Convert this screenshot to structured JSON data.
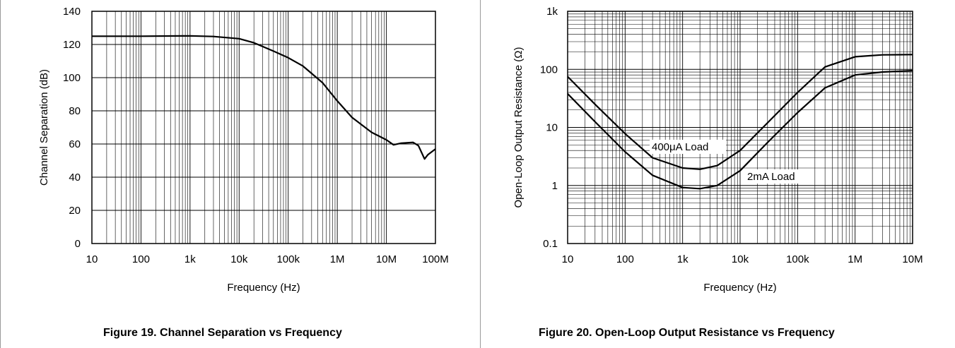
{
  "chart_data": [
    {
      "type": "line",
      "caption": "Figure 19. Channel Separation vs Frequency",
      "xlabel": "Frequency (Hz)",
      "ylabel": "Channel Separation (dB)",
      "xscale": "log",
      "xlim": [
        10,
        100000000
      ],
      "ylim": [
        0,
        140
      ],
      "x_tick_labels": [
        "10",
        "100",
        "1k",
        "10k",
        "100k",
        "1M",
        "10M",
        "100M"
      ],
      "y_tick_labels": [
        "0",
        "20",
        "40",
        "60",
        "80",
        "100",
        "120",
        "140"
      ],
      "grid": true,
      "series": [
        {
          "x": [
            10,
            100,
            1000,
            3000,
            10000,
            20000,
            50000,
            100000,
            200000,
            500000,
            1000000,
            2000000,
            5000000,
            10000000,
            14000000,
            20000000,
            35000000,
            45000000,
            60000000,
            70000000,
            100000000
          ],
          "values": [
            125,
            125,
            125.2,
            124.8,
            123.5,
            121,
            116,
            112,
            107,
            97,
            86,
            76,
            67,
            62.5,
            59.5,
            60.5,
            61,
            59,
            51,
            53.5,
            57
          ]
        }
      ]
    },
    {
      "type": "line",
      "caption": "Figure 20. Open-Loop Output Resistance vs Frequency",
      "xlabel": "Frequency (Hz)",
      "ylabel": "Open-Loop Output Resistance (Ω)",
      "xscale": "log",
      "yscale": "log",
      "xlim": [
        10,
        10000000
      ],
      "ylim": [
        0.1,
        1000
      ],
      "x_tick_labels": [
        "10",
        "100",
        "1k",
        "10k",
        "100k",
        "1M",
        "10M"
      ],
      "y_tick_labels": [
        "0.1",
        "1",
        "10",
        "100",
        "1k"
      ],
      "grid": true,
      "annotations": [
        "400μA Load",
        "2mA Load"
      ],
      "series": [
        {
          "label": "400μA Load",
          "x": [
            10,
            30,
            100,
            300,
            1000,
            2000,
            4000,
            10000,
            30000,
            100000,
            300000,
            1000000,
            3000000,
            10000000
          ],
          "values": [
            75,
            25,
            7.8,
            3.0,
            2.0,
            1.9,
            2.2,
            4.0,
            12,
            40,
            110,
            165,
            178,
            180
          ]
        },
        {
          "label": "2mA Load",
          "x": [
            10,
            30,
            100,
            300,
            1000,
            2000,
            4000,
            10000,
            30000,
            100000,
            300000,
            1000000,
            3000000,
            10000000
          ],
          "values": [
            38,
            12.5,
            3.8,
            1.5,
            0.92,
            0.88,
            1.0,
            1.8,
            5.5,
            18,
            48,
            80,
            90,
            95
          ]
        }
      ]
    }
  ]
}
